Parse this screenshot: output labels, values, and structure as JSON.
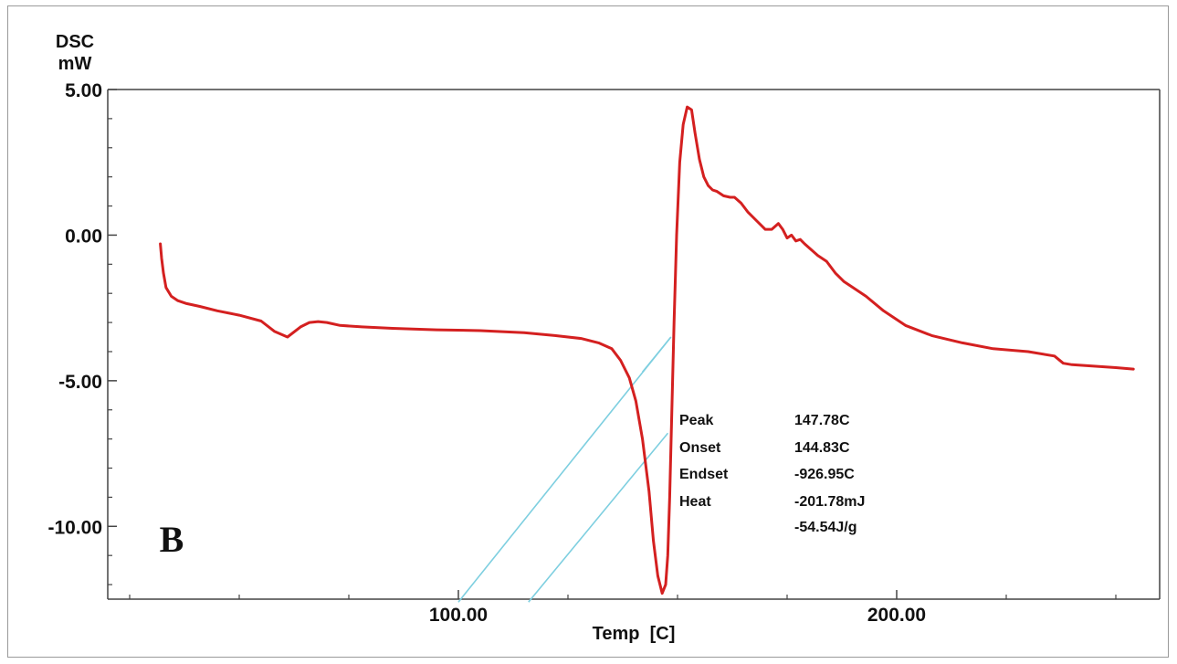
{
  "chart_data": {
    "type": "line",
    "title": "",
    "xlabel": "Temp  [C]",
    "ylabel": "DSC",
    "yunit": "mW",
    "panel_label": "B",
    "xlim": [
      20,
      260
    ],
    "ylim": [
      -12.5,
      5.0
    ],
    "x_ticks": [
      100.0,
      200.0
    ],
    "x_tick_labels": [
      "100.00",
      "200.00"
    ],
    "y_ticks": [
      5.0,
      0.0,
      -5.0,
      -10.0
    ],
    "y_tick_labels": [
      "5.00",
      "0.00",
      "-5.00",
      "-10.00"
    ],
    "grid": false,
    "colors": {
      "curve": "#d42020",
      "baseline": "#7ecfe0"
    },
    "series": [
      {
        "values_x": [
          32.0,
          32.3,
          32.7,
          33.3,
          34.5,
          36.0,
          38.0,
          41.0,
          45.0,
          50.0,
          55.0,
          58.0,
          61.0,
          64.0,
          66.0,
          68.0,
          70.0,
          73.0,
          78.0,
          85.0,
          95.0,
          105.0,
          115.0,
          122.0,
          128.0,
          132.0,
          135.0,
          137.0,
          139.0,
          140.5,
          142.0,
          143.5,
          144.5,
          145.5,
          146.5,
          147.3,
          147.78,
          148.2,
          148.7,
          149.2,
          149.8,
          150.5,
          151.3,
          152.2,
          153.2,
          154.0,
          155.0,
          156.0,
          157.0,
          158.0,
          159.0,
          160.5,
          162.0,
          163.0,
          164.5,
          166.0,
          168.0,
          170.0,
          171.5,
          173.0,
          174.0,
          175.0,
          176.0,
          177.0,
          178.0,
          179.0,
          180.5,
          182.0,
          184.0,
          186.0,
          188.0,
          190.0,
          193.0,
          197.0,
          202.0,
          208.0,
          215.0,
          222.0,
          230.0,
          236.0,
          238.0,
          240.0,
          245.0,
          250.0,
          254.0
        ],
        "values_y": [
          -0.3,
          -0.8,
          -1.3,
          -1.8,
          -2.1,
          -2.25,
          -2.35,
          -2.45,
          -2.6,
          -2.75,
          -2.95,
          -3.3,
          -3.5,
          -3.15,
          -3.0,
          -2.97,
          -3.0,
          -3.1,
          -3.15,
          -3.2,
          -3.25,
          -3.28,
          -3.35,
          -3.45,
          -3.55,
          -3.7,
          -3.9,
          -4.3,
          -4.9,
          -5.7,
          -7.0,
          -8.8,
          -10.5,
          -11.7,
          -12.3,
          -12.0,
          -11.0,
          -9.0,
          -6.0,
          -3.0,
          0.0,
          2.5,
          3.8,
          4.4,
          4.3,
          3.5,
          2.6,
          2.0,
          1.7,
          1.55,
          1.5,
          1.35,
          1.3,
          1.3,
          1.1,
          0.8,
          0.5,
          0.2,
          0.2,
          0.4,
          0.2,
          -0.1,
          0.0,
          -0.2,
          -0.15,
          -0.3,
          -0.5,
          -0.7,
          -0.9,
          -1.3,
          -1.6,
          -1.8,
          -2.1,
          -2.6,
          -3.1,
          -3.45,
          -3.7,
          -3.9,
          -4.0,
          -4.15,
          -4.4,
          -4.45,
          -4.5,
          -4.55,
          -4.6
        ]
      }
    ],
    "baselines": [
      {
        "x": [
          100.0,
          148.5
        ],
        "y": [
          -12.6,
          -3.5
        ]
      },
      {
        "x": [
          116.0,
          147.8
        ],
        "y": [
          -12.6,
          -6.8
        ]
      },
      {
        "x": [
          142.0,
          148.5
        ],
        "y": [
          -4.7,
          -3.5
        ]
      }
    ],
    "annotation": {
      "rows": [
        {
          "label": "Peak",
          "value": "147.78C"
        },
        {
          "label": "Onset",
          "value": "144.83C"
        },
        {
          "label": "Endset",
          "value": "-926.95C"
        },
        {
          "label": "Heat",
          "value": "-201.78mJ"
        },
        {
          "label": "",
          "value": "-54.54J/g"
        }
      ]
    }
  }
}
